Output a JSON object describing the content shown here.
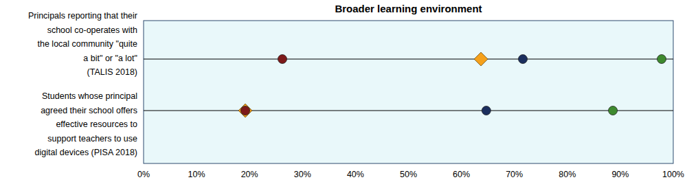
{
  "chart_data": {
    "type": "dot",
    "title": "Broader learning environment",
    "orientation": "horizontal",
    "categories": [
      "Principals reporting that their\nschool co-operates with\nthe local community \"quite\na bit\" or \"a lot\"\n(TALIS 2018)",
      "Students whose principal\nagreed their school offers\neffective resources to\nsupport teachers to use\ndigital devices (PISA 2018)"
    ],
    "series": [
      {
        "color": "#f5a11c",
        "marker": "diamond",
        "values": [
          63.7,
          19.2
        ]
      },
      {
        "color": "#7d1a1a",
        "marker": "circle",
        "values": [
          26.2,
          19.2
        ]
      },
      {
        "color": "#1b2f5e",
        "marker": "circle",
        "values": [
          71.6,
          64.7
        ]
      },
      {
        "color": "#3e8a2f",
        "marker": "circle",
        "values": [
          97.8,
          88.6
        ]
      }
    ],
    "xlim": [
      0,
      100
    ],
    "xticks": [
      {
        "value": 0,
        "label": "0%"
      },
      {
        "value": 10,
        "label": "10%"
      },
      {
        "value": 20,
        "label": "20%"
      },
      {
        "value": 30,
        "label": "30%"
      },
      {
        "value": 40,
        "label": "40%"
      },
      {
        "value": 50,
        "label": "50%"
      },
      {
        "value": 60,
        "label": "60%"
      },
      {
        "value": 70,
        "label": "70%"
      },
      {
        "value": 80,
        "label": "80%"
      },
      {
        "value": 90,
        "label": "90%"
      },
      {
        "value": 100,
        "label": "100%"
      }
    ],
    "grid": false,
    "tick_labels": "x"
  }
}
